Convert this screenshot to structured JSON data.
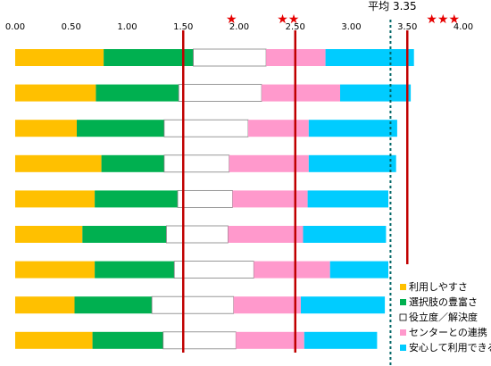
{
  "chart_data": {
    "type": "bar",
    "orientation": "horizontal",
    "stacked": true,
    "x_ticks": [
      "0.00",
      "0.50",
      "1.00",
      "1.50",
      "2.00",
      "2.50",
      "3.00",
      "3.50",
      "4.00"
    ],
    "xlim": [
      0,
      4
    ],
    "grid": false,
    "legend_position": "bottom-right",
    "series": [
      {
        "name": "利用しやすさ",
        "color": "#ffc000",
        "values": [
          0.79,
          0.72,
          0.55,
          0.77,
          0.71,
          0.6,
          0.71,
          0.53,
          0.69
        ]
      },
      {
        "name": "選択肢の豊富さ",
        "color": "#00b050",
        "values": [
          0.8,
          0.74,
          0.78,
          0.56,
          0.74,
          0.75,
          0.71,
          0.69,
          0.63
        ]
      },
      {
        "name": "役立度／解決度",
        "color": "#ffffff",
        "values": [
          0.65,
          0.74,
          0.75,
          0.58,
          0.49,
          0.55,
          0.71,
          0.73,
          0.65
        ]
      },
      {
        "name": "センターとの連携",
        "color": "#ff99cc",
        "values": [
          0.53,
          0.7,
          0.54,
          0.71,
          0.67,
          0.67,
          0.68,
          0.6,
          0.61
        ]
      },
      {
        "name": "安心して利用できる",
        "color": "#00ccff",
        "values": [
          0.79,
          0.63,
          0.79,
          0.78,
          0.72,
          0.74,
          0.52,
          0.75,
          0.65
        ]
      }
    ],
    "reference_lines": [
      {
        "value": 1.5,
        "color": "#c00000",
        "style": "solid",
        "label": "★"
      },
      {
        "value": 2.5,
        "color": "#c00000",
        "style": "solid",
        "label": "★★"
      },
      {
        "value": 3.5,
        "color": "#c00000",
        "style": "solid",
        "label": "★★★"
      },
      {
        "value": 3.35,
        "color": "#006666",
        "style": "dashed",
        "label": "平均 3.35"
      }
    ]
  }
}
